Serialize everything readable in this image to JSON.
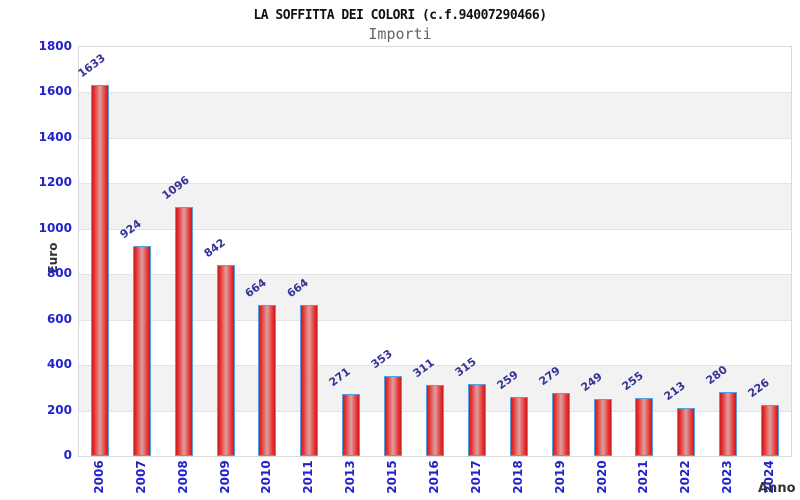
{
  "header": {
    "title": "LA SOFFITTA DEI COLORI (c.f.94007290466)",
    "subtitle": "Importi"
  },
  "chart_data": {
    "type": "bar",
    "title": "LA SOFFITTA DEI COLORI (c.f.94007290466)",
    "subtitle": "Importi",
    "xlabel": "Anno",
    "ylabel": "Euro",
    "categories": [
      "2006",
      "2007",
      "2008",
      "2009",
      "2010",
      "2011",
      "2013",
      "2015",
      "2016",
      "2017",
      "2018",
      "2019",
      "2020",
      "2021",
      "2022",
      "2023",
      "2024"
    ],
    "values": [
      1633,
      924,
      1096,
      842,
      664,
      664,
      271,
      353,
      311,
      315,
      259,
      279,
      249,
      255,
      213,
      280,
      226
    ],
    "ylim": [
      0,
      1800
    ],
    "ytick_step": 200,
    "y_ticks": [
      0,
      200,
      400,
      600,
      800,
      1000,
      1200,
      1400,
      1600,
      1800
    ],
    "grid": "horizontal-bands-alternating-200",
    "legend": "none",
    "bar_labels_rotated": true,
    "x_labels_rotated": true
  },
  "colors": {
    "title": "#111111",
    "subtitle": "#666666",
    "tick_label": "#2222cc",
    "value_label": "#333399",
    "axis_title": "#333333",
    "bar_red": "#e82f2f",
    "bar_red_dark": "#c41e1e",
    "bar_center": "#dda0a0",
    "bar_border": "#55a0e0",
    "band_gray": "#f2f2f2",
    "band_white": "#ffffff",
    "plot_border": "#d9d9d9",
    "gridline": "#e3e3e3"
  }
}
